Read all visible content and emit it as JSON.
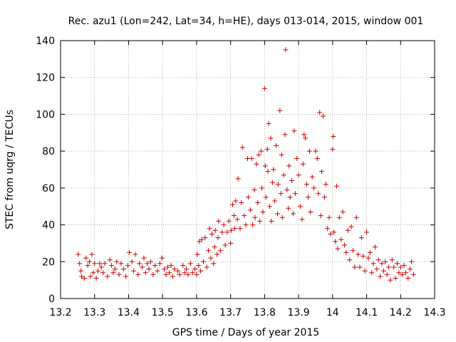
{
  "chart_data": {
    "type": "scatter",
    "title": "Rec. azu1 (Lon=242, Lat=34, h=HE), days 013-014, 2015, window 001",
    "xlabel": "GPS time / Days of year 2015",
    "ylabel": "STEC from uqrg / TECUs",
    "xlim": [
      13.2,
      14.3
    ],
    "ylim": [
      0,
      140
    ],
    "x_ticks": [
      "13.2",
      "13.3",
      "13.4",
      "13.5",
      "13.6",
      "13.7",
      "13.8",
      "13.9",
      "14",
      "14.1",
      "14.2",
      "14.3"
    ],
    "y_ticks": [
      "0",
      "20",
      "40",
      "60",
      "80",
      "100",
      "120",
      "140"
    ],
    "grid": true,
    "marker": "+",
    "colors": {
      "points": "#cc0000",
      "grid": "#a0a0a0",
      "axis": "#000000"
    },
    "series": [
      {
        "name": "STEC",
        "points": [
          [
            13.252,
            24
          ],
          [
            13.256,
            19
          ],
          [
            13.26,
            15
          ],
          [
            13.262,
            12
          ],
          [
            13.27,
            11
          ],
          [
            13.275,
            22
          ],
          [
            13.28,
            18
          ],
          [
            13.285,
            20
          ],
          [
            13.288,
            12
          ],
          [
            13.292,
            24
          ],
          [
            13.296,
            14
          ],
          [
            13.3,
            19
          ],
          [
            13.305,
            11
          ],
          [
            13.31,
            15
          ],
          [
            13.315,
            19
          ],
          [
            13.32,
            17
          ],
          [
            13.325,
            14
          ],
          [
            13.33,
            19
          ],
          [
            13.338,
            12
          ],
          [
            13.345,
            21
          ],
          [
            13.35,
            18
          ],
          [
            13.355,
            14
          ],
          [
            13.36,
            16
          ],
          [
            13.365,
            20
          ],
          [
            13.372,
            13
          ],
          [
            13.378,
            19
          ],
          [
            13.385,
            16
          ],
          [
            13.392,
            12
          ],
          [
            13.398,
            18
          ],
          [
            13.402,
            25
          ],
          [
            13.41,
            20
          ],
          [
            13.415,
            15
          ],
          [
            13.42,
            24
          ],
          [
            13.428,
            13
          ],
          [
            13.432,
            19
          ],
          [
            13.44,
            17
          ],
          [
            13.445,
            22
          ],
          [
            13.45,
            14
          ],
          [
            13.455,
            19
          ],
          [
            13.46,
            16
          ],
          [
            13.465,
            20
          ],
          [
            13.472,
            13
          ],
          [
            13.478,
            18
          ],
          [
            13.485,
            15
          ],
          [
            13.492,
            19
          ],
          [
            13.498,
            22
          ],
          [
            13.505,
            16
          ],
          [
            13.51,
            13
          ],
          [
            13.515,
            17
          ],
          [
            13.52,
            14
          ],
          [
            13.525,
            18
          ],
          [
            13.53,
            12
          ],
          [
            13.535,
            16
          ],
          [
            13.545,
            15
          ],
          [
            13.55,
            13
          ],
          [
            13.56,
            18
          ],
          [
            13.565,
            14
          ],
          [
            13.57,
            16
          ],
          [
            13.575,
            13
          ],
          [
            13.582,
            19
          ],
          [
            13.588,
            14
          ],
          [
            13.595,
            16
          ],
          [
            13.6,
            13
          ],
          [
            13.602,
            24
          ],
          [
            13.606,
            18
          ],
          [
            13.608,
            31
          ],
          [
            13.612,
            15
          ],
          [
            13.615,
            32
          ],
          [
            13.62,
            20
          ],
          [
            13.625,
            33
          ],
          [
            13.63,
            17
          ],
          [
            13.635,
            26
          ],
          [
            13.638,
            38
          ],
          [
            13.642,
            22
          ],
          [
            13.645,
            35
          ],
          [
            13.65,
            19
          ],
          [
            13.653,
            28
          ],
          [
            13.655,
            37
          ],
          [
            13.66,
            24
          ],
          [
            13.663,
            33
          ],
          [
            13.665,
            42
          ],
          [
            13.67,
            26
          ],
          [
            13.675,
            36
          ],
          [
            13.68,
            40
          ],
          [
            13.684,
            29
          ],
          [
            13.69,
            36
          ],
          [
            13.695,
            42
          ],
          [
            13.7,
            30
          ],
          [
            13.702,
            37
          ],
          [
            13.706,
            51
          ],
          [
            13.71,
            45
          ],
          [
            13.712,
            38
          ],
          [
            13.715,
            53
          ],
          [
            13.72,
            43
          ],
          [
            13.722,
            65
          ],
          [
            13.728,
            38
          ],
          [
            13.732,
            52
          ],
          [
            13.735,
            82
          ],
          [
            13.74,
            45
          ],
          [
            13.745,
            40
          ],
          [
            13.75,
            76
          ],
          [
            13.752,
            55
          ],
          [
            13.758,
            48
          ],
          [
            13.762,
            76
          ],
          [
            13.765,
            40
          ],
          [
            13.77,
            59
          ],
          [
            13.772,
            44
          ],
          [
            13.776,
            73
          ],
          [
            13.78,
            52
          ],
          [
            13.783,
            78
          ],
          [
            13.786,
            42
          ],
          [
            13.79,
            80
          ],
          [
            13.792,
            60
          ],
          [
            13.795,
            47
          ],
          [
            13.8,
            114
          ],
          [
            13.802,
            72
          ],
          [
            13.804,
            55
          ],
          [
            13.808,
            81
          ],
          [
            13.81,
            69
          ],
          [
            13.812,
            95
          ],
          [
            13.815,
            50
          ],
          [
            13.818,
            87
          ],
          [
            13.82,
            42
          ],
          [
            13.823,
            63
          ],
          [
            13.826,
            70
          ],
          [
            13.83,
            53
          ],
          [
            13.834,
            83
          ],
          [
            13.838,
            46
          ],
          [
            13.84,
            62
          ],
          [
            13.845,
            102
          ],
          [
            13.848,
            57
          ],
          [
            13.85,
            78
          ],
          [
            13.852,
            44
          ],
          [
            13.856,
            67
          ],
          [
            13.86,
            89
          ],
          [
            13.862,
            135
          ],
          [
            13.866,
            59
          ],
          [
            13.87,
            49
          ],
          [
            13.872,
            72
          ],
          [
            13.875,
            55
          ],
          [
            13.88,
            64
          ],
          [
            13.884,
            46
          ],
          [
            13.887,
            91
          ],
          [
            13.89,
            57
          ],
          [
            13.895,
            76
          ],
          [
            13.9,
            67
          ],
          [
            13.905,
            50
          ],
          [
            13.91,
            43
          ],
          [
            13.913,
            73
          ],
          [
            13.916,
            89
          ],
          [
            13.92,
            87
          ],
          [
            13.924,
            62
          ],
          [
            13.928,
            55
          ],
          [
            13.932,
            80
          ],
          [
            13.935,
            47
          ],
          [
            13.94,
            66
          ],
          [
            13.945,
            60
          ],
          [
            13.95,
            80
          ],
          [
            13.955,
            76
          ],
          [
            13.958,
            57
          ],
          [
            13.962,
            101
          ],
          [
            13.965,
            45
          ],
          [
            13.968,
            69
          ],
          [
            13.972,
            99
          ],
          [
            13.976,
            55
          ],
          [
            13.98,
            62
          ],
          [
            13.985,
            38
          ],
          [
            13.99,
            44
          ],
          [
            13.994,
            35
          ],
          [
            14.0,
            81
          ],
          [
            14.002,
            88
          ],
          [
            14.004,
            36
          ],
          [
            14.008,
            31
          ],
          [
            14.012,
            61
          ],
          [
            14.015,
            27
          ],
          [
            14.02,
            44
          ],
          [
            14.025,
            32
          ],
          [
            14.03,
            47
          ],
          [
            14.035,
            29
          ],
          [
            14.04,
            25
          ],
          [
            14.045,
            37
          ],
          [
            14.05,
            21
          ],
          [
            14.055,
            39
          ],
          [
            14.06,
            26
          ],
          [
            14.065,
            17
          ],
          [
            14.07,
            44
          ],
          [
            14.075,
            24
          ],
          [
            14.08,
            17
          ],
          [
            14.085,
            33
          ],
          [
            14.09,
            23
          ],
          [
            14.095,
            15
          ],
          [
            14.1,
            36
          ],
          [
            14.105,
            22
          ],
          [
            14.11,
            25
          ],
          [
            14.115,
            14
          ],
          [
            14.12,
            19
          ],
          [
            14.125,
            28
          ],
          [
            14.13,
            16
          ],
          [
            14.135,
            21
          ],
          [
            14.14,
            12
          ],
          [
            14.145,
            19
          ],
          [
            14.15,
            15
          ],
          [
            14.155,
            20
          ],
          [
            14.16,
            13
          ],
          [
            14.165,
            17
          ],
          [
            14.17,
            10
          ],
          [
            14.175,
            21
          ],
          [
            14.18,
            17
          ],
          [
            14.185,
            11
          ],
          [
            14.19,
            19
          ],
          [
            14.195,
            14
          ],
          [
            14.2,
            17
          ],
          [
            14.205,
            13
          ],
          [
            14.21,
            18
          ],
          [
            14.215,
            14
          ],
          [
            14.222,
            11
          ],
          [
            14.228,
            16
          ],
          [
            14.232,
            20
          ],
          [
            14.238,
            13
          ]
        ]
      }
    ]
  }
}
